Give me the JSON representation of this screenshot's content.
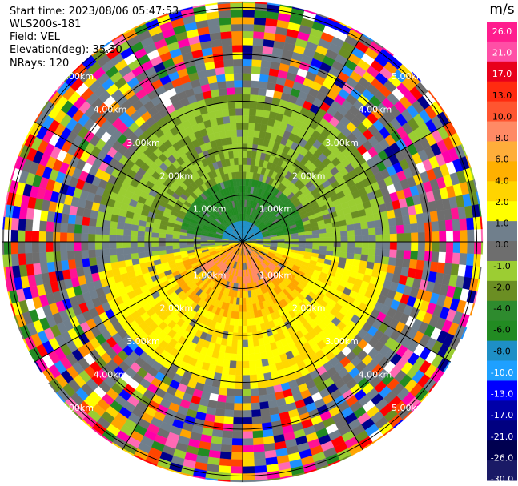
{
  "header": {
    "start_time": "Start time: 2023/08/06 05:47:53",
    "instrument": "WLS200s-181",
    "field": "Field: VEL",
    "elevation": "Elevation(deg): 35.30",
    "nrays": "NRays: 120"
  },
  "colorbar": {
    "unit": "m/s",
    "ticks": [
      "26.0",
      "21.0",
      "17.0",
      "13.0",
      "10.0",
      "8.0",
      "6.0",
      "4.0",
      "2.0",
      "1.0",
      "0.0",
      "-1.0",
      "-2.0",
      "-4.0",
      "-6.0",
      "-8.0",
      "-10.0",
      "-13.0",
      "-17.0",
      "-21.0",
      "-26.0",
      "-30.0"
    ],
    "colors": [
      "#ff1d8e",
      "#ff4fa6",
      "#e8001b",
      "#ff2b10",
      "#ff5530",
      "#ff8a65",
      "#ffae3a",
      "#ffb000",
      "#ffd400",
      "#ffff00",
      "#707f8c",
      "#6e6e6e",
      "#9ccd33",
      "#6b8e23",
      "#2e8b2e",
      "#228b22",
      "#1e8fc6",
      "#1ea0ff",
      "#0000ff",
      "#0000a8",
      "#000080",
      "#000050",
      "#1a1a66"
    ]
  },
  "chart_data": {
    "type": "heatmap",
    "projection": "PPI (polar)",
    "field": "VEL",
    "units": "m/s",
    "nrays": 120,
    "elevation_deg": 35.3,
    "range_ring_labels": [
      "1.00km",
      "2.00km",
      "3.00km",
      "4.00km",
      "5.00km"
    ],
    "range_rings_km": [
      1,
      2,
      3,
      4,
      5
    ],
    "colorbar_range": [
      -30,
      26
    ],
    "pattern_description": "Near-range: positive velocities (yellow/orange) to the south, negative (green) to the north; beyond ~3 km noisy multicolored clutter."
  }
}
